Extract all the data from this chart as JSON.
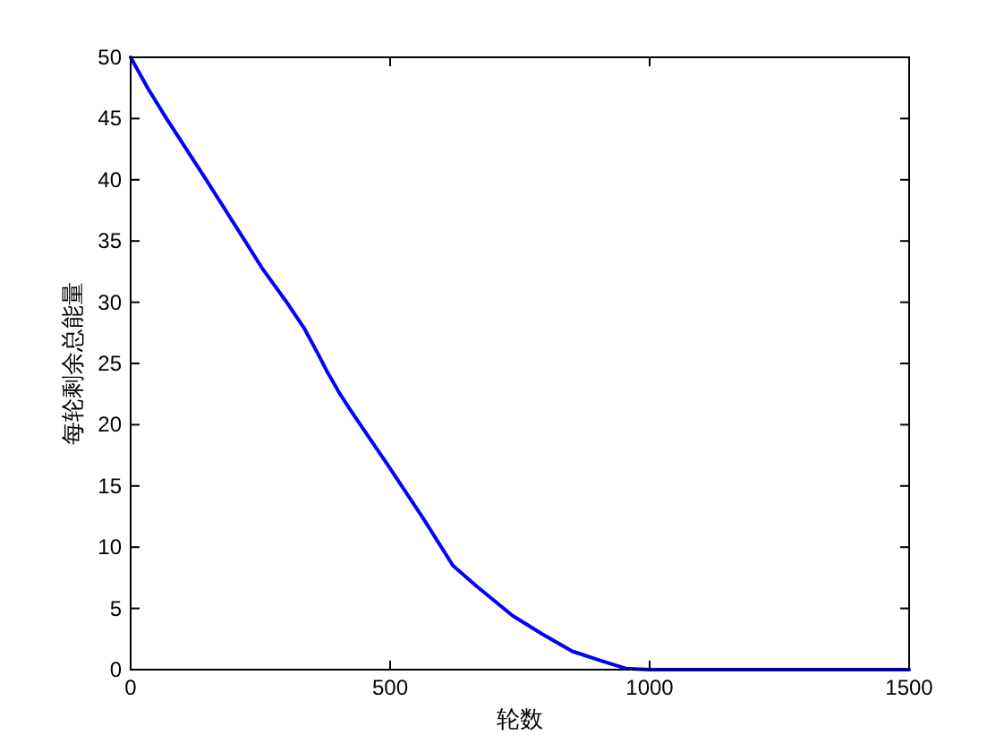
{
  "chart_data": {
    "type": "line",
    "xlabel": "轮数",
    "ylabel": "每轮剩余总能量",
    "x": [
      0,
      34,
      69,
      144,
      219,
      253,
      299,
      334,
      362,
      379,
      402,
      425,
      494,
      563,
      621,
      667,
      736,
      793,
      851,
      908,
      954,
      1000,
      1500
    ],
    "series": [
      {
        "color": "#0000ff",
        "values": [
          50,
          47.4,
          45,
          40.1,
          35.1,
          32.8,
          30.1,
          27.9,
          25.7,
          24.3,
          22.6,
          21.1,
          16.8,
          12.4,
          8.5,
          6.8,
          4.4,
          2.9,
          1.5,
          0.7,
          0.1,
          0,
          0
        ]
      }
    ],
    "xlim": [
      0,
      1500
    ],
    "ylim": [
      0,
      50
    ],
    "xticks": [
      0,
      500,
      1000,
      1500
    ],
    "yticks": [
      0,
      5,
      10,
      15,
      20,
      25,
      30,
      35,
      40,
      45,
      50
    ],
    "grid": false,
    "marker": "none",
    "line_style": "solid"
  }
}
